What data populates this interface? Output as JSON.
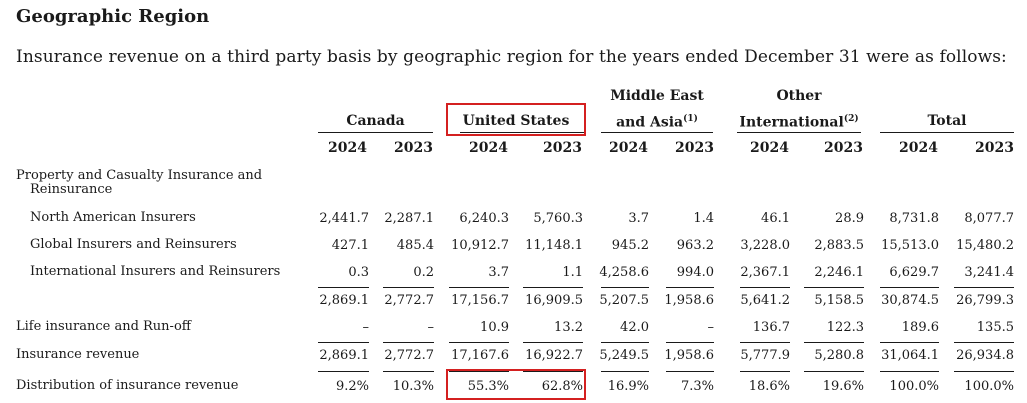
{
  "title": "Geographic Region",
  "intro": "Insurance revenue on a third party basis by geographic region for the years ended December 31 were as follows:",
  "groups": {
    "canada": "Canada",
    "us": "United States",
    "mea_line1": "Middle East",
    "mea_line2": "and Asia",
    "mea_note": "(1)",
    "oi_line1": "Other",
    "oi_line2": "International",
    "oi_note": "(2)",
    "total": "Total"
  },
  "years": [
    "2024",
    "2023",
    "2024",
    "2023",
    "2024",
    "2023",
    "2024",
    "2023",
    "2024",
    "2023"
  ],
  "section_label_line1": "Property and Casualty Insurance and",
  "section_label_line2": "Reinsurance",
  "rows": [
    {
      "label": "North American Insurers",
      "values": [
        "2,441.7",
        "2,287.1",
        "6,240.3",
        "5,760.3",
        "3.7",
        "1.4",
        "46.1",
        "28.9",
        "8,731.8",
        "8,077.7"
      ]
    },
    {
      "label": "Global Insurers and Reinsurers",
      "values": [
        "427.1",
        "485.4",
        "10,912.7",
        "11,148.1",
        "945.2",
        "963.2",
        "3,228.0",
        "2,883.5",
        "15,513.0",
        "15,480.2"
      ]
    },
    {
      "label": "International Insurers and Reinsurers",
      "values": [
        "0.3",
        "0.2",
        "3.7",
        "1.1",
        "4,258.6",
        "994.0",
        "2,367.1",
        "2,246.1",
        "6,629.7",
        "3,241.4"
      ]
    },
    {
      "label": "",
      "values": [
        "2,869.1",
        "2,772.7",
        "17,156.7",
        "16,909.5",
        "5,207.5",
        "1,958.6",
        "5,641.2",
        "5,158.5",
        "30,874.5",
        "26,799.3"
      ]
    },
    {
      "label": "Life insurance and Run-off",
      "values": [
        "–",
        "–",
        "10.9",
        "13.2",
        "42.0",
        "–",
        "136.7",
        "122.3",
        "189.6",
        "135.5"
      ]
    },
    {
      "label": "Insurance revenue",
      "values": [
        "2,869.1",
        "2,772.7",
        "17,167.6",
        "16,922.7",
        "5,249.5",
        "1,958.6",
        "5,777.9",
        "5,280.8",
        "31,064.1",
        "26,934.8"
      ]
    },
    {
      "label": "Distribution of insurance revenue",
      "values": [
        "9.2%",
        "10.3%",
        "55.3%",
        "62.8%",
        "16.9%",
        "7.3%",
        "18.6%",
        "19.6%",
        "100.0%",
        "100.0%"
      ]
    }
  ],
  "colors": {
    "highlight": "#d42020",
    "text": "#1a1a1a"
  }
}
